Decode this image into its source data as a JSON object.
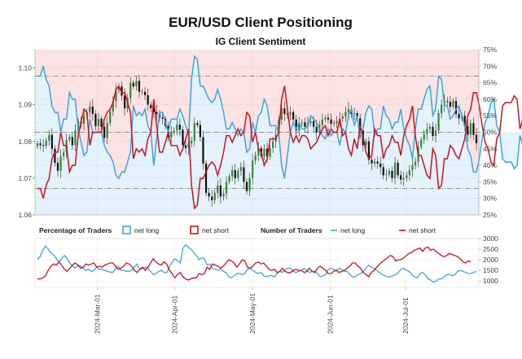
{
  "title": "EUR/USD Client Positioning",
  "subtitle": "IG Client Sentiment",
  "legend": {
    "pct_label": "Percentage of Traders",
    "net_long": "net long",
    "net_short": "net short",
    "num_label": "Number of Traders"
  },
  "colors": {
    "long": "#3da5e0",
    "short": "#cc1122",
    "long_fill": "#e3f2fb",
    "short_fill": "#fbe3e3",
    "candle_up": "#2e8b2e",
    "candle_down": "#111111",
    "price_axis": "#3a8a2a"
  },
  "chart_data": [
    {
      "type": "candlestick+line",
      "name": "price-and-sentiment",
      "title": "IG Client Sentiment",
      "price_axis": {
        "range": [
          1.06,
          1.105
        ],
        "ticks": [
          "1.06",
          "1.07",
          "1.08",
          "1.09",
          "1.10"
        ]
      },
      "pct_axis": {
        "range": [
          25,
          75
        ],
        "ticks": [
          "25%",
          "30%",
          "35%",
          "40%",
          "45%",
          "50%",
          "55%",
          "60%",
          "65%",
          "70%",
          "75%"
        ]
      },
      "reference_lines_pct": [
        33,
        50,
        67
      ],
      "x_ticks": [
        "2024-Mar-01",
        "2024-Apr-01",
        "2024-May-01",
        "2024-Jun-01",
        "2024-Jul-01"
      ],
      "close": [
        1.0795,
        1.079,
        1.0788,
        1.0802,
        1.0818,
        1.078,
        1.0742,
        1.072,
        1.076,
        1.077,
        1.0805,
        1.0812,
        1.079,
        1.083,
        1.0855,
        1.0848,
        1.087,
        1.088,
        1.0895,
        1.0875,
        1.0842,
        1.0862,
        1.084,
        1.081,
        1.085,
        1.0882,
        1.091,
        1.094,
        1.095,
        1.0925,
        1.089,
        1.0918,
        1.096,
        1.095,
        1.0965,
        1.0935,
        1.0935,
        1.0926,
        1.09,
        1.089,
        1.088,
        1.0875,
        1.0865,
        1.0862,
        1.0842,
        1.0812,
        1.0825,
        1.083,
        1.0846,
        1.0832,
        1.079,
        1.0782,
        1.0795,
        1.0802,
        1.085,
        1.0845,
        1.0812,
        1.074,
        1.066,
        1.065,
        1.064,
        1.066,
        1.068,
        1.065,
        1.0658,
        1.069,
        1.0705,
        1.0722,
        1.07,
        1.072,
        1.073,
        1.069,
        1.0665,
        1.07,
        1.0748,
        1.0762,
        1.0782,
        1.076,
        1.078,
        1.0758,
        1.0782,
        1.08,
        1.0818,
        1.086,
        1.089,
        1.0875,
        1.0873,
        1.088,
        1.086,
        1.083,
        1.085,
        1.0852,
        1.084,
        1.085,
        1.0855,
        1.084,
        1.0825,
        1.0845,
        1.086,
        1.0865,
        1.086,
        1.0848,
        1.085,
        1.0856,
        1.0862,
        1.0868,
        1.088,
        1.0888,
        1.0875,
        1.0877,
        1.0863,
        1.083,
        1.079,
        1.08,
        1.075,
        1.074,
        1.0745,
        1.074,
        1.073,
        1.0708,
        1.071,
        1.072,
        1.07,
        1.0742,
        1.0708,
        1.0696,
        1.07,
        1.0708,
        1.0722,
        1.0735,
        1.0745,
        1.0785,
        1.0805,
        1.082,
        1.0834,
        1.084,
        1.0815,
        1.083,
        1.0877,
        1.09,
        1.091,
        1.0908,
        1.0895,
        1.091,
        1.0875,
        1.0863,
        1.087,
        1.0842,
        1.0818,
        1.085,
        1.0818,
        1.0795
      ],
      "net_long_pct": [
        67,
        67,
        70,
        66,
        64,
        58,
        56,
        56,
        50,
        54,
        54,
        62,
        60,
        60,
        51,
        47,
        43,
        44,
        54,
        50,
        50,
        50,
        50,
        46,
        44,
        43,
        41,
        37,
        36,
        38,
        38,
        41,
        44,
        58,
        55,
        56,
        55,
        57,
        52,
        50,
        40,
        48,
        56,
        56,
        53,
        50,
        54,
        54,
        54,
        57,
        55,
        52,
        49,
        66,
        73,
        72,
        64,
        64,
        62,
        60,
        59,
        60,
        63,
        60,
        56,
        51,
        51,
        53,
        51,
        49,
        51,
        50,
        44,
        45,
        53,
        50,
        55,
        56,
        60,
        58,
        52,
        52,
        52,
        50,
        40,
        36,
        43,
        50,
        53,
        51,
        53,
        51,
        51,
        52,
        55,
        54,
        53,
        51,
        49,
        48,
        51,
        49,
        50,
        50,
        46,
        51,
        50,
        55,
        57,
        52,
        55,
        48,
        51,
        56,
        58,
        57,
        49,
        51,
        51,
        58,
        55,
        54,
        51,
        53,
        53,
        57,
        51,
        48,
        46,
        42,
        51,
        57,
        57,
        60,
        63,
        64,
        55,
        57,
        67,
        66,
        58,
        58,
        54,
        55,
        57,
        58,
        55,
        52,
        45,
        43,
        38,
        38,
        42,
        48,
        53,
        55,
        59,
        60,
        52,
        50,
        42,
        41,
        41,
        41,
        39,
        40,
        49,
        46,
        45,
        38,
        37,
        41,
        39,
        38,
        38,
        44,
        46,
        49,
        50,
        44,
        48,
        50,
        52,
        54,
        46,
        50
      ],
      "net_short_pct": [
        33,
        33,
        30,
        34,
        36,
        42,
        44,
        44,
        50,
        46,
        46,
        38,
        40,
        40,
        49,
        53,
        57,
        56,
        46,
        50,
        50,
        50,
        50,
        54,
        56,
        57,
        59,
        63,
        64,
        62,
        62,
        59,
        56,
        42,
        45,
        44,
        45,
        43,
        48,
        50,
        60,
        52,
        44,
        44,
        47,
        50,
        46,
        46,
        46,
        43,
        45,
        48,
        51,
        34,
        27,
        28,
        36,
        36,
        38,
        40,
        41,
        40,
        37,
        40,
        44,
        49,
        49,
        47,
        49,
        51,
        49,
        50,
        56,
        55,
        47,
        50,
        45,
        44,
        40,
        42,
        48,
        48,
        48,
        50,
        60,
        64,
        57,
        50,
        47,
        49,
        47,
        49,
        49,
        48,
        45,
        46,
        47,
        49,
        51,
        52,
        49,
        51,
        50,
        50,
        54,
        49,
        50,
        45,
        43,
        48,
        45,
        52,
        49,
        44,
        42,
        43,
        51,
        49,
        49,
        42,
        45,
        46,
        49,
        47,
        47,
        43,
        49,
        52,
        54,
        58,
        49,
        43,
        43,
        40,
        37,
        36,
        45,
        43,
        33,
        34,
        42,
        42,
        46,
        45,
        43,
        42,
        45,
        48,
        55,
        57,
        62,
        62,
        58,
        52,
        47,
        45,
        41,
        40,
        48,
        50,
        58,
        59,
        59,
        59,
        61,
        60,
        51,
        54,
        55,
        62,
        63,
        59,
        61,
        62,
        62,
        56,
        54,
        51,
        50,
        56,
        52,
        50,
        48,
        46,
        54,
        50
      ]
    },
    {
      "type": "line",
      "name": "number-of-traders",
      "y_axis": {
        "range": [
          700,
          3000
        ],
        "ticks": [
          "1000",
          "1500",
          "2000",
          "2500",
          "3000"
        ]
      },
      "series": [
        {
          "name": "net long",
          "values": [
            2000,
            2150,
            2450,
            2650,
            2500,
            2320,
            2250,
            2050,
            1900,
            2050,
            2200,
            2050,
            1850,
            1700,
            1600,
            1750,
            1700,
            1600,
            1500,
            1550,
            1450,
            1500,
            1650,
            1550,
            1550,
            1500,
            1450,
            1420,
            1400,
            1600,
            1700,
            1500,
            1500,
            1450,
            1450,
            1500,
            1650,
            1800,
            1550,
            1600,
            1650,
            1600,
            1450,
            1300,
            1350,
            1450,
            1500,
            1400,
            1400,
            1650,
            1900,
            2050,
            1950,
            1850,
            2550,
            2700,
            2600,
            2500,
            2350,
            2200,
            2000,
            2100,
            2050,
            1750,
            1800,
            1600,
            1550,
            1500,
            1550,
            1450,
            1400,
            1200,
            1150,
            1250,
            1350,
            1350,
            1300,
            1350,
            1550,
            1600,
            1500,
            1400,
            1350,
            1400,
            1250,
            1200,
            1250,
            1250,
            1200,
            1350,
            1450,
            1400,
            1550,
            1600,
            1600,
            1450,
            1400,
            1450,
            1500,
            1600,
            1500,
            1400,
            1450,
            1450,
            1350,
            1200,
            1250,
            1300,
            1550,
            1600,
            1550,
            1500,
            1600,
            1550,
            1450,
            1450,
            1300,
            1200,
            1200,
            1300,
            1350,
            1450,
            1600,
            1750,
            1650,
            1600,
            1500,
            1400,
            1300,
            1250,
            1200,
            1200,
            1250,
            1300,
            1400,
            1550,
            1600,
            1500,
            1450,
            1300,
            1200,
            1150,
            1350,
            1400,
            1300,
            1100,
            1050,
            950,
            1000,
            1100,
            1100,
            1200,
            1300,
            1300,
            1250,
            1300,
            1450,
            1500,
            1450,
            1400,
            1350,
            1350,
            1400,
            1450
          ]
        },
        {
          "name": "net short",
          "values": [
            1100,
            1100,
            1150,
            1250,
            1500,
            1700,
            1800,
            1750,
            1900,
            1750,
            1550,
            1450,
            1600,
            1750,
            1850,
            1750,
            1600,
            1650,
            1800,
            1750,
            1800,
            1850,
            1650,
            1700,
            1650,
            1750,
            1800,
            1850,
            1850,
            1700,
            1550,
            1600,
            1700,
            1850,
            1800,
            1700,
            1500,
            1400,
            1550,
            1650,
            1500,
            1650,
            1850,
            2050,
            1900,
            1800,
            1750,
            1900,
            1800,
            1500,
            1350,
            1150,
            1300,
            1400,
            1200,
            1100,
            1050,
            1100,
            1150,
            1150,
            1350,
            1300,
            1350,
            1650,
            1550,
            1800,
            1750,
            1700,
            1600,
            1700,
            1850,
            2000,
            1950,
            1850,
            1650,
            1800,
            2000,
            1950,
            1650,
            1600,
            1700,
            1850,
            1900,
            1800,
            1850,
            1700,
            1550,
            1500,
            1550,
            1400,
            1450,
            1600,
            1450,
            1400,
            1400,
            1500,
            1550,
            1500,
            1500,
            1400,
            1450,
            1600,
            1450,
            1400,
            1600,
            1700,
            1600,
            1500,
            1350,
            1350,
            1450,
            1500,
            1400,
            1450,
            1500,
            1600,
            1700,
            1850,
            1850,
            1700,
            1600,
            1400,
            1300,
            1200,
            1400,
            1500,
            1650,
            1800,
            1900,
            2000,
            2100,
            2200,
            2150,
            1950,
            2000,
            2000,
            2100,
            2200,
            2300,
            2350,
            2450,
            2500,
            2550,
            2400,
            2550,
            2600,
            2450,
            2500,
            2400,
            2300,
            2200,
            2150,
            2200,
            2300,
            2250,
            2200,
            2150,
            2050,
            1900,
            1850,
            1950,
            1900
          ]
        }
      ]
    }
  ]
}
